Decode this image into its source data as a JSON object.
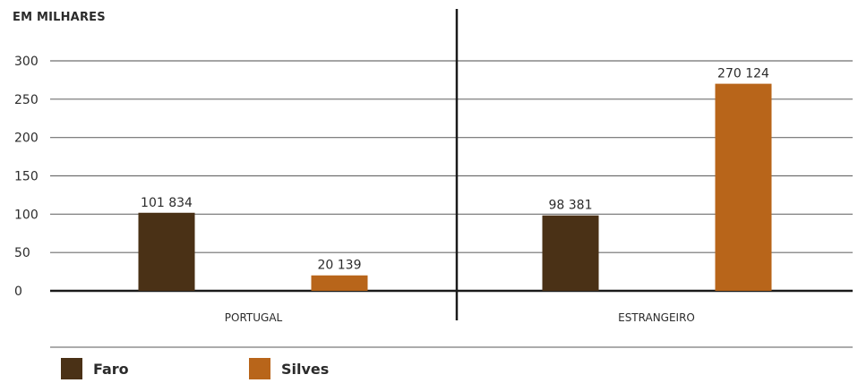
{
  "unit_label": "EM MILHARES",
  "colors": {
    "Faro": "#4a3116",
    "Silves": "#b8651a",
    "grid": "#6f6f6f",
    "axis": "#1a1a1a"
  },
  "chart_data": {
    "type": "bar",
    "title": "",
    "xlabel": "",
    "ylabel": "EM MILHARES",
    "ylim": [
      0,
      300
    ],
    "yticks": [
      0,
      50,
      100,
      150,
      200,
      250,
      300
    ],
    "categories": [
      "PORTUGAL",
      "ESTRANGEIRO"
    ],
    "series": [
      {
        "name": "Faro",
        "values": [
          101.834,
          98.381
        ],
        "labels": [
          "101 834",
          "98 381"
        ]
      },
      {
        "name": "Silves",
        "values": [
          20.139,
          270.124
        ],
        "labels": [
          "20 139",
          "270 124"
        ]
      }
    ],
    "legend": "bottom-left",
    "grid": true
  }
}
